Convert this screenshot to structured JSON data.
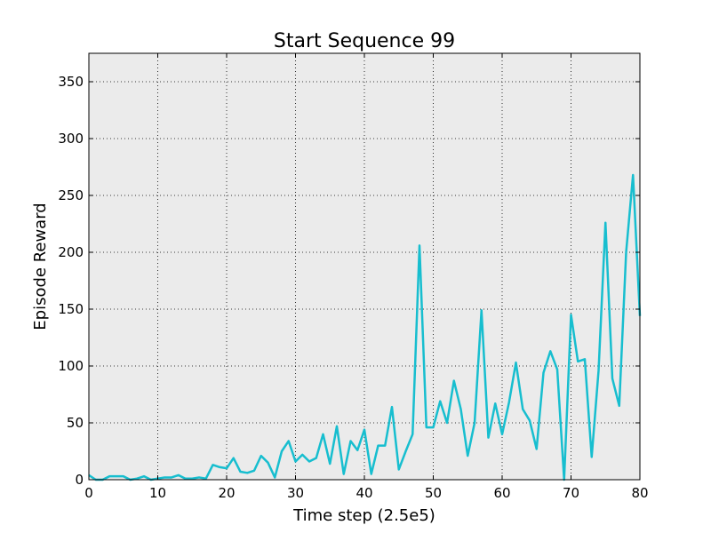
{
  "chart_data": {
    "type": "line",
    "title": "Start Sequence 99",
    "xlabel": "Time step (2.5e5)",
    "ylabel": "Episode Reward",
    "xlim": [
      0,
      80
    ],
    "ylim": [
      0,
      375
    ],
    "xticks": [
      "0",
      "10",
      "20",
      "30",
      "40",
      "50",
      "60",
      "70",
      "80"
    ],
    "yticks": [
      "0",
      "50",
      "100",
      "150",
      "200",
      "250",
      "300",
      "350"
    ],
    "grid": true,
    "background_color": "#ebebeb",
    "series": [
      {
        "color": "#17becf",
        "x": [
          0,
          1,
          2,
          3,
          4,
          5,
          6,
          7,
          8,
          9,
          10,
          11,
          12,
          13,
          14,
          15,
          16,
          17,
          18,
          19,
          20,
          21,
          22,
          23,
          24,
          25,
          26,
          27,
          28,
          29,
          30,
          31,
          32,
          33,
          34,
          35,
          36,
          37,
          38,
          39,
          40,
          41,
          42,
          43,
          44,
          45,
          46,
          47,
          48,
          49,
          50,
          51,
          52,
          53,
          54,
          55,
          56,
          57,
          58,
          59,
          60,
          61,
          62,
          63,
          64,
          65,
          66,
          67,
          68,
          69,
          70,
          71,
          72,
          73,
          74,
          75,
          76,
          77,
          78,
          79,
          80
        ],
        "values": [
          4,
          0,
          0,
          3,
          3,
          3,
          0,
          1,
          3,
          0,
          1,
          2,
          2,
          4,
          1,
          1,
          2,
          1,
          13,
          11,
          10,
          19,
          7,
          6,
          8,
          21,
          15,
          2,
          25,
          34,
          16,
          22,
          16,
          19,
          40,
          14,
          47,
          5,
          34,
          26,
          44,
          5,
          30,
          30,
          64,
          9,
          25,
          40,
          206,
          46,
          46,
          69,
          50,
          87,
          62,
          21,
          50,
          149,
          37,
          67,
          40,
          68,
          103,
          62,
          52,
          27,
          94,
          113,
          97,
          0,
          145,
          104,
          106,
          20,
          96,
          226,
          89,
          65,
          200,
          268,
          144
        ]
      }
    ]
  }
}
